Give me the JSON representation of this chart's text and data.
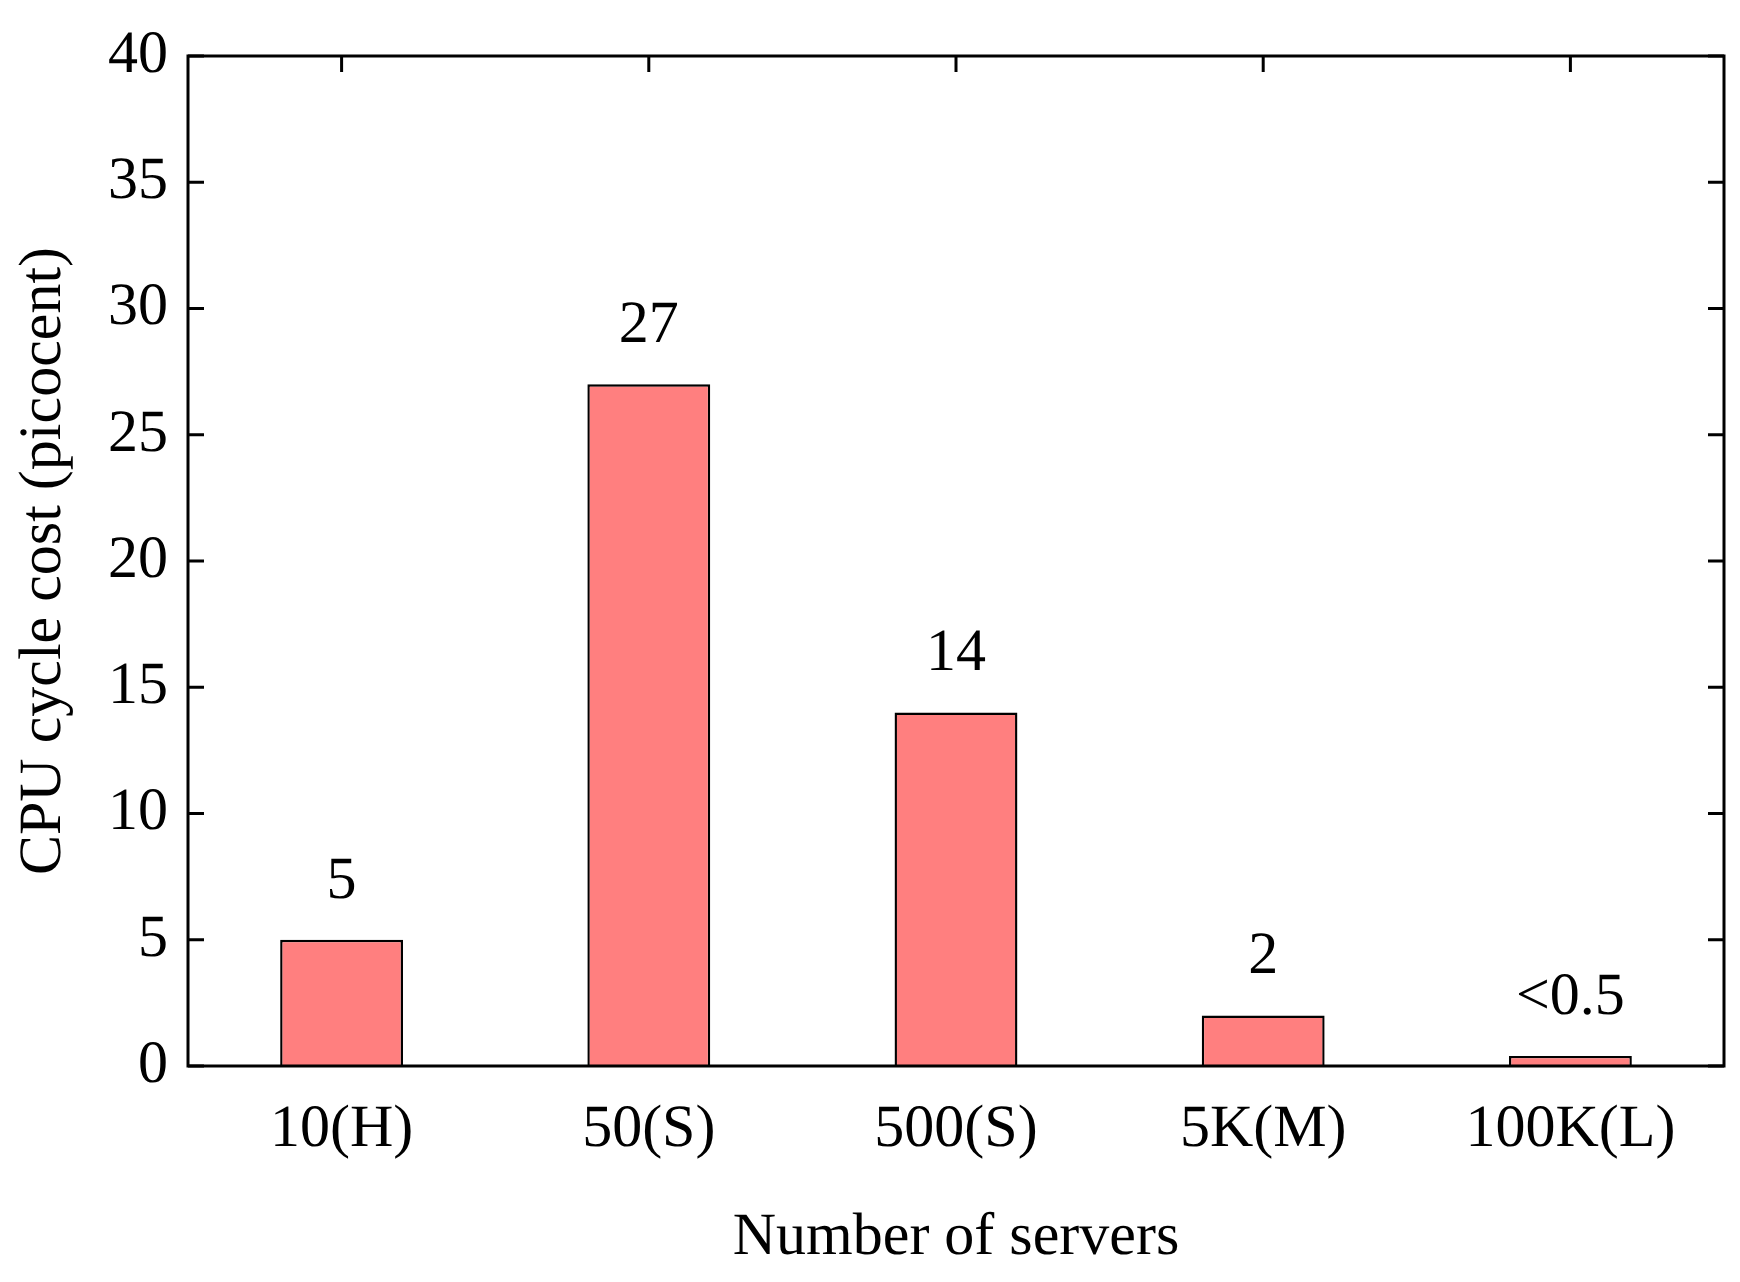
{
  "chart_data": {
    "type": "bar",
    "xlabel": "Number of servers",
    "ylabel": "CPU cycle cost (picocent)",
    "categories": [
      "10(H)",
      "50(S)",
      "500(S)",
      "5K(M)",
      "100K(L)"
    ],
    "values": [
      5,
      27,
      14,
      2,
      0.4
    ],
    "value_labels": [
      "5",
      "27",
      "14",
      "2",
      "<0.5"
    ],
    "color": "#ff7f7f",
    "ylim": [
      0,
      40
    ],
    "yticks": [
      0,
      5,
      10,
      15,
      20,
      25,
      30,
      35,
      40
    ],
    "grid": false,
    "legend": false
  }
}
